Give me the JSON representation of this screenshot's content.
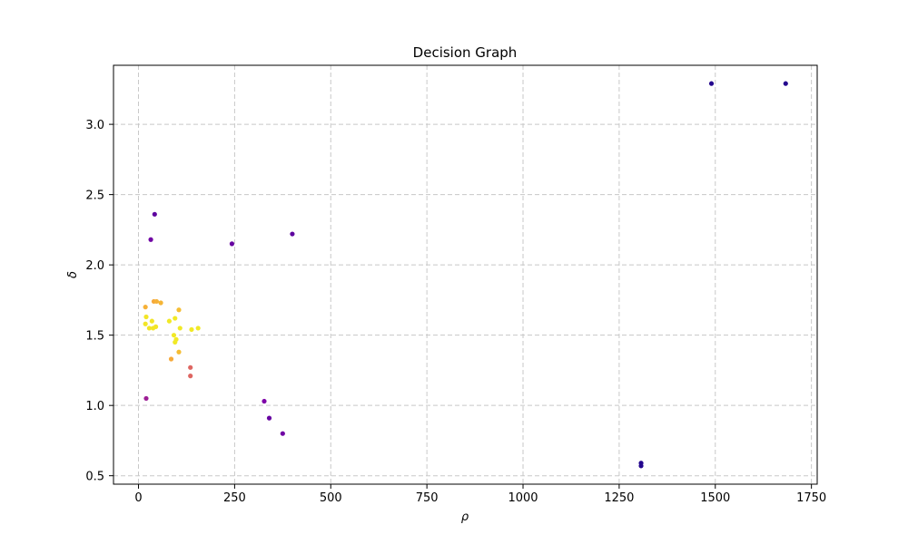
{
  "chart_data": {
    "type": "scatter",
    "title": "Decision Graph",
    "xlabel": "ρ",
    "ylabel": "δ",
    "xlim": [
      -65,
      1765
    ],
    "ylim": [
      0.44,
      3.42
    ],
    "xticks": [
      0,
      250,
      500,
      750,
      1000,
      1250,
      1500,
      1750
    ],
    "yticks": [
      0.5,
      1.0,
      1.5,
      2.0,
      2.5,
      3.0
    ],
    "xtick_labels": [
      "0",
      "250",
      "500",
      "750",
      "1000",
      "1250",
      "1500",
      "1750"
    ],
    "ytick_labels": [
      "0.5",
      "1.0",
      "1.5",
      "2.0",
      "2.5",
      "3.0"
    ],
    "grid": true,
    "grid_style": "dashed",
    "colormap": "plasma",
    "points": [
      {
        "x": 1490,
        "y": 3.29,
        "c": 0.05
      },
      {
        "x": 1683,
        "y": 3.29,
        "c": 0.05
      },
      {
        "x": 1307,
        "y": 0.59,
        "c": 0.05
      },
      {
        "x": 1307,
        "y": 0.57,
        "c": 0.05
      },
      {
        "x": 42,
        "y": 2.36,
        "c": 0.18
      },
      {
        "x": 32,
        "y": 2.18,
        "c": 0.22
      },
      {
        "x": 243,
        "y": 2.15,
        "c": 0.2
      },
      {
        "x": 400,
        "y": 2.22,
        "c": 0.18
      },
      {
        "x": 327,
        "y": 1.03,
        "c": 0.25
      },
      {
        "x": 340,
        "y": 0.91,
        "c": 0.2
      },
      {
        "x": 375,
        "y": 0.8,
        "c": 0.22
      },
      {
        "x": 20,
        "y": 1.05,
        "c": 0.35
      },
      {
        "x": 135,
        "y": 1.27,
        "c": 0.6
      },
      {
        "x": 135,
        "y": 1.21,
        "c": 0.6
      },
      {
        "x": 85,
        "y": 1.33,
        "c": 0.8
      },
      {
        "x": 40,
        "y": 1.74,
        "c": 0.8
      },
      {
        "x": 47,
        "y": 1.74,
        "c": 0.82
      },
      {
        "x": 58,
        "y": 1.73,
        "c": 0.83
      },
      {
        "x": 18,
        "y": 1.7,
        "c": 0.82
      },
      {
        "x": 105,
        "y": 1.68,
        "c": 0.85
      },
      {
        "x": 20,
        "y": 1.63,
        "c": 0.95
      },
      {
        "x": 18,
        "y": 1.58,
        "c": 0.95
      },
      {
        "x": 35,
        "y": 1.6,
        "c": 0.95
      },
      {
        "x": 28,
        "y": 1.55,
        "c": 0.95
      },
      {
        "x": 38,
        "y": 1.55,
        "c": 0.95
      },
      {
        "x": 45,
        "y": 1.56,
        "c": 0.95
      },
      {
        "x": 80,
        "y": 1.6,
        "c": 0.96
      },
      {
        "x": 95,
        "y": 1.62,
        "c": 0.96
      },
      {
        "x": 108,
        "y": 1.55,
        "c": 0.96
      },
      {
        "x": 92,
        "y": 1.5,
        "c": 0.96
      },
      {
        "x": 98,
        "y": 1.47,
        "c": 0.96
      },
      {
        "x": 95,
        "y": 1.45,
        "c": 0.96
      },
      {
        "x": 138,
        "y": 1.54,
        "c": 0.96
      },
      {
        "x": 155,
        "y": 1.55,
        "c": 0.96
      },
      {
        "x": 105,
        "y": 1.38,
        "c": 0.85
      }
    ]
  }
}
